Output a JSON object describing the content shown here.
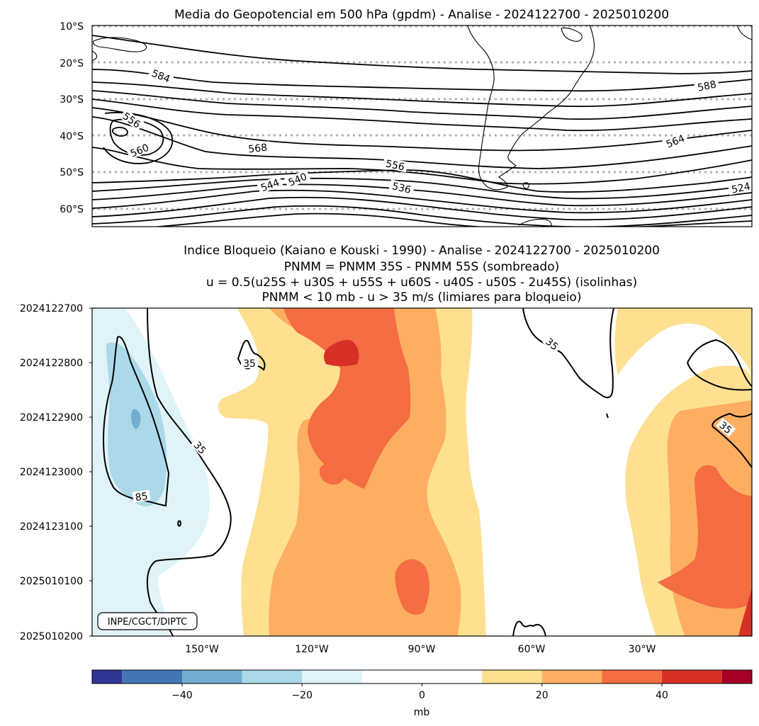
{
  "chart_data": [
    {
      "type": "contour",
      "title": "Media do Geopotencial em 500 hPa (gpdm) - Analise - 2024122700 - 2025010200",
      "ylabel_ticks": [
        "10°S",
        "20°S",
        "30°S",
        "40°S",
        "50°S",
        "60°S"
      ],
      "lat_ticks": [
        -10,
        -20,
        -30,
        -40,
        -50,
        -60
      ],
      "lat_range": [
        -10,
        -65
      ],
      "contour_labels": [
        {
          "text": "584",
          "value": 584
        },
        {
          "text": "588",
          "value": 588
        },
        {
          "text": "556",
          "value": 556
        },
        {
          "text": "560",
          "value": 560
        },
        {
          "text": "568",
          "value": 568
        },
        {
          "text": "556",
          "value": 556
        },
        {
          "text": "564",
          "value": 564
        },
        {
          "text": "544",
          "value": 544
        },
        {
          "text": "540",
          "value": 540
        },
        {
          "text": "536",
          "value": 536
        },
        {
          "text": "524",
          "value": 524
        }
      ]
    },
    {
      "type": "heatmap",
      "title_lines": [
        "Indice Bloqueio (Kaiano e Kouski - 1990) - Analise - 2024122700 - 2025010200",
        "PNMM = PNMM 35S - PNMM 55S (sombreado)",
        "u = 0.5(u25S + u30S + u55S + u60S - u40S - u50S - 2u45S) (isolinhas)",
        "PNMM < 10 mb - u > 35 m/s (limiares para bloqueio)"
      ],
      "y_ticks": [
        "2024122700",
        "2024122800",
        "2024122900",
        "2024123000",
        "2024123100",
        "2025010100",
        "2025010200"
      ],
      "x_ticks": [
        "150°W",
        "120°W",
        "90°W",
        "60°W",
        "30°W"
      ],
      "x_tick_values": [
        -150,
        -120,
        -90,
        -60,
        -30
      ],
      "x_range": [
        -180,
        0
      ],
      "contour_labels": [
        {
          "text": "35",
          "value": 35
        },
        {
          "text": "35",
          "value": 35
        },
        {
          "text": "35",
          "value": 35
        },
        {
          "text": "35",
          "value": 35
        },
        {
          "text": "85",
          "value": 85
        }
      ],
      "levels": [
        -50,
        -40,
        -30,
        -20,
        -10,
        10,
        20,
        30,
        40,
        50
      ],
      "watermark": "INPE/CGCT/DIPTC"
    }
  ],
  "colorbar": {
    "label": "mb",
    "tick_labels": [
      "−40",
      "−20",
      "0",
      "20",
      "40"
    ],
    "tick_values": [
      -40,
      -20,
      0,
      20,
      40
    ],
    "range": [
      -55,
      55
    ],
    "bins": [
      {
        "from": -55,
        "to": -50,
        "color": "#313695"
      },
      {
        "from": -50,
        "to": -40,
        "color": "#4575b4"
      },
      {
        "from": -40,
        "to": -30,
        "color": "#74add1"
      },
      {
        "from": -30,
        "to": -20,
        "color": "#abd9e9"
      },
      {
        "from": -20,
        "to": -10,
        "color": "#e0f3f8"
      },
      {
        "from": -10,
        "to": 10,
        "color": "#ffffff"
      },
      {
        "from": 10,
        "to": 20,
        "color": "#fee090"
      },
      {
        "from": 20,
        "to": 30,
        "color": "#fdae61"
      },
      {
        "from": 30,
        "to": 40,
        "color": "#f46d43"
      },
      {
        "from": 40,
        "to": 50,
        "color": "#d73027"
      },
      {
        "from": 50,
        "to": 55,
        "color": "#a50026"
      }
    ]
  }
}
